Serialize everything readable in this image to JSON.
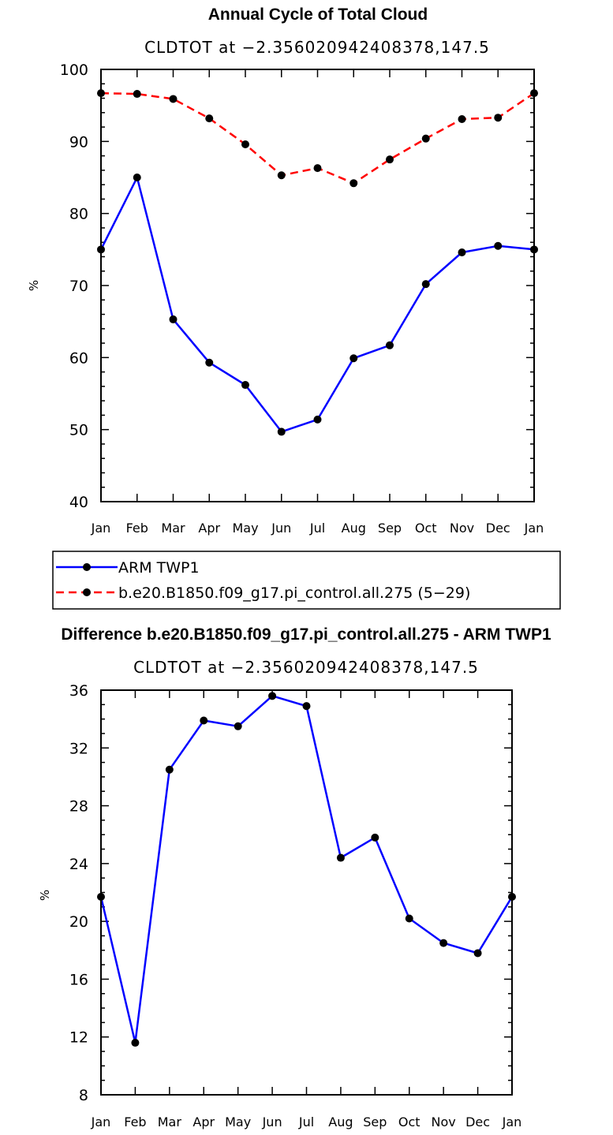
{
  "chart_data": [
    {
      "type": "line",
      "title": "Annual Cycle of Total Cloud",
      "subtitle": "CLDTOT at −2.356020942408378,147.5",
      "xlabel": "",
      "ylabel": "%",
      "categories": [
        "Jan",
        "Feb",
        "Mar",
        "Apr",
        "May",
        "Jun",
        "Jul",
        "Aug",
        "Sep",
        "Oct",
        "Nov",
        "Dec",
        "Jan"
      ],
      "ylim": [
        40,
        100
      ],
      "yticks": [
        40,
        50,
        60,
        70,
        80,
        90,
        100
      ],
      "ytick_labels": [
        "40",
        "50",
        "60",
        "70",
        "80",
        "90",
        "100"
      ],
      "series": [
        {
          "name": "ARM TWP1",
          "color": "#0000ff",
          "dash": "solid",
          "values": [
            75.0,
            85.0,
            65.3,
            59.3,
            56.2,
            49.7,
            51.4,
            59.9,
            61.7,
            70.2,
            74.6,
            75.5,
            75.0
          ]
        },
        {
          "name": "b.e20.B1850.f09_g17.pi_control.all.275 (5−29)",
          "color": "#ff0000",
          "dash": "dashed",
          "values": [
            96.7,
            96.6,
            95.9,
            93.2,
            89.6,
            85.3,
            86.3,
            84.2,
            87.5,
            90.4,
            93.1,
            93.3,
            96.7
          ]
        }
      ],
      "legend_position": "below"
    },
    {
      "type": "line",
      "title": "Difference b.e20.B1850.f09_g17.pi_control.all.275 - ARM TWP1",
      "subtitle": "CLDTOT at −2.356020942408378,147.5",
      "xlabel": "",
      "ylabel": "%",
      "categories": [
        "Jan",
        "Feb",
        "Mar",
        "Apr",
        "May",
        "Jun",
        "Jul",
        "Aug",
        "Sep",
        "Oct",
        "Nov",
        "Dec",
        "Jan"
      ],
      "ylim": [
        8,
        36
      ],
      "yticks": [
        8,
        12,
        16,
        20,
        24,
        28,
        32,
        36
      ],
      "ytick_labels": [
        "8",
        "12",
        "16",
        "20",
        "24",
        "28",
        "32",
        "36"
      ],
      "series": [
        {
          "name": "Difference",
          "color": "#0000ff",
          "dash": "solid",
          "values": [
            21.7,
            11.6,
            30.5,
            33.9,
            33.5,
            35.6,
            34.9,
            24.4,
            25.8,
            20.2,
            18.5,
            17.8,
            21.7
          ]
        }
      ]
    }
  ]
}
